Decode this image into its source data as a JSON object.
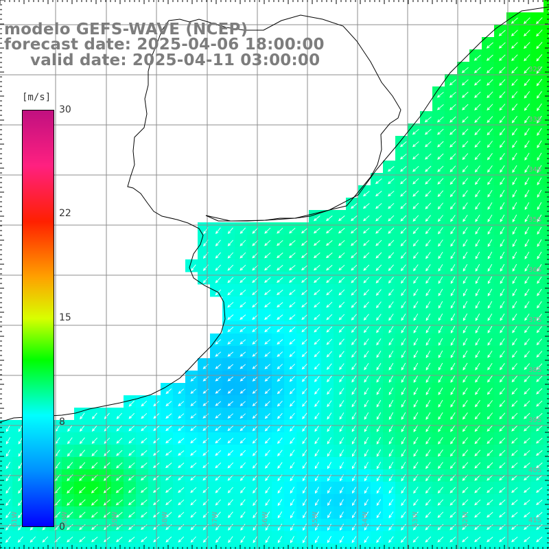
{
  "map": {
    "title": "modelo GEFS-WAVE (NCEP)",
    "forecast_date": "forecast date: 2025-04-06 18:00:00",
    "valid_date": "valid date: 2025-04-11 03:00:00"
  },
  "colorbar": {
    "unit": "[m/s]",
    "ticks": [
      "30",
      "22",
      "15",
      "8",
      "0"
    ],
    "tick_values": [
      30,
      22,
      15,
      8,
      0
    ],
    "range": [
      0,
      30
    ],
    "stops": [
      {
        "v": 0,
        "color": "#0000ff"
      },
      {
        "v": 4,
        "color": "#0090ff"
      },
      {
        "v": 8,
        "color": "#00ffff"
      },
      {
        "v": 12,
        "color": "#00ff00"
      },
      {
        "v": 15,
        "color": "#d8ff00"
      },
      {
        "v": 18,
        "color": "#ffa000"
      },
      {
        "v": 22,
        "color": "#ff2000"
      },
      {
        "v": 26,
        "color": "#ff2080"
      },
      {
        "v": 30,
        "color": "#c01080"
      }
    ]
  },
  "lat_labels": [
    "32S",
    "33S",
    "34S",
    "35S",
    "36S",
    "37S",
    "38S",
    "39S",
    "40S",
    "41S"
  ],
  "lon_labels": [
    "61W",
    "60W",
    "59W",
    "58W",
    "57W",
    "56W",
    "55W",
    "54W",
    "53W",
    "52W"
  ],
  "colors": {
    "land": "#ffffff",
    "coastline": "#000000",
    "grid": "#8c8c8c",
    "title": "#7d7d7d",
    "arrow": "#ffffff"
  },
  "wind": {
    "direction_to": "southwest",
    "speed_range_mps": [
      5,
      12
    ]
  }
}
